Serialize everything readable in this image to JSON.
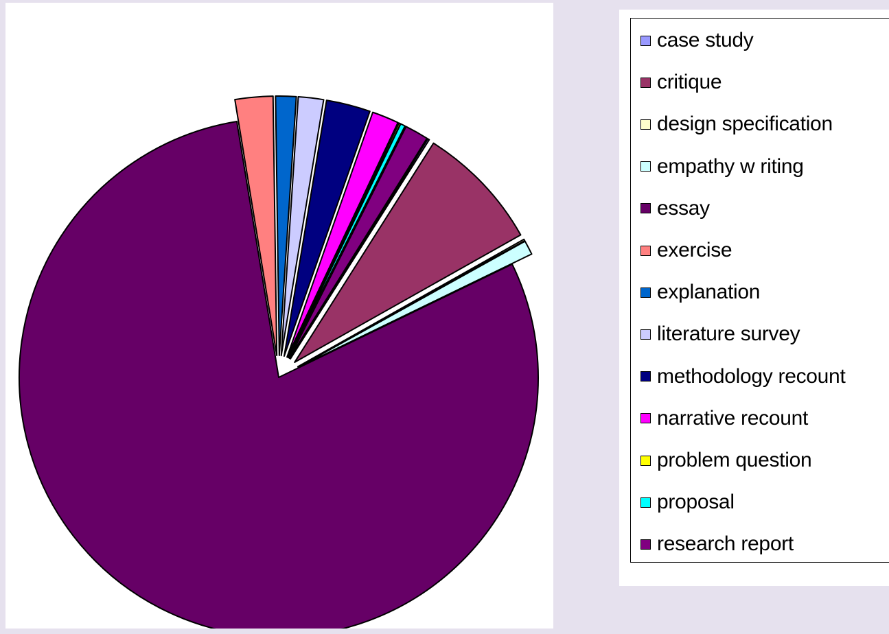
{
  "chart_data": {
    "type": "pie",
    "title": "",
    "exploded": true,
    "legend_position": "right",
    "categories": [
      "case study",
      "critique",
      "design specification",
      "empathy w riting",
      "essay",
      "exercise",
      "explanation",
      "literature survey",
      "methodology recount",
      "narrative recount",
      "problem question",
      "proposal",
      "research report"
    ],
    "values": [
      0.1,
      8.0,
      0.1,
      0.9,
      81.2,
      2.4,
      1.3,
      1.6,
      2.8,
      1.7,
      0.1,
      0.3,
      1.5
    ],
    "colors": [
      "#9999ff",
      "#993366",
      "#ffffcc",
      "#ccffff",
      "#660066",
      "#ff8080",
      "#0066cc",
      "#ccccff",
      "#000080",
      "#ff00ff",
      "#ffff00",
      "#00ffff",
      "#800080"
    ]
  }
}
